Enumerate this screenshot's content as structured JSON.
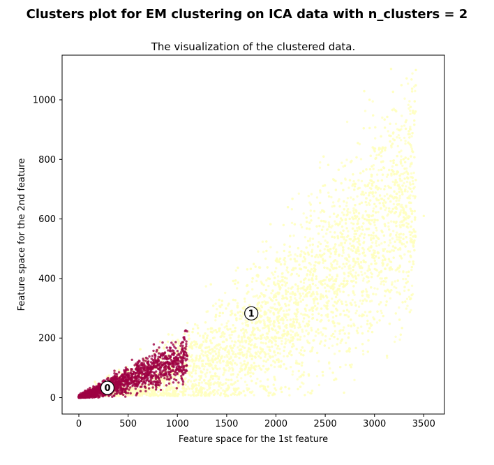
{
  "figure": {
    "suptitle": "Clusters plot for EM clustering on ICA data with n_clusters = 2"
  },
  "chart_data": {
    "type": "scatter",
    "title": "The visualization of the clustered data.",
    "xlabel": "Feature space for the 1st feature",
    "ylabel": "Feature space for the 2nd feature",
    "xlim": [
      -170,
      3710
    ],
    "ylim": [
      -55,
      1150
    ],
    "xticks": [
      0,
      500,
      1000,
      1500,
      2000,
      2500,
      3000,
      3500
    ],
    "yticks": [
      0,
      200,
      400,
      600,
      800,
      1000
    ],
    "grid": false,
    "series": [
      {
        "cluster": "1",
        "color": "#ffffbf",
        "shape": "cone",
        "x_range": [
          200,
          3500
        ],
        "y_range": [
          20,
          1100
        ],
        "points": [
          [
            300,
            60
          ],
          [
            400,
            70
          ],
          [
            500,
            90
          ],
          [
            600,
            90
          ],
          [
            700,
            110
          ],
          [
            800,
            120
          ],
          [
            900,
            140
          ],
          [
            1000,
            150
          ],
          [
            1100,
            160
          ],
          [
            1200,
            180
          ],
          [
            1300,
            200
          ],
          [
            1400,
            220
          ],
          [
            1500,
            240
          ],
          [
            1600,
            260
          ],
          [
            1700,
            280
          ],
          [
            1800,
            300
          ],
          [
            1900,
            320
          ],
          [
            2000,
            340
          ],
          [
            2100,
            360
          ],
          [
            2200,
            380
          ],
          [
            2300,
            400
          ],
          [
            2400,
            430
          ],
          [
            2500,
            460
          ],
          [
            2600,
            490
          ],
          [
            2700,
            520
          ],
          [
            2800,
            560
          ],
          [
            2900,
            600
          ],
          [
            3000,
            650
          ],
          [
            3100,
            700
          ],
          [
            3200,
            750
          ],
          [
            3300,
            620
          ],
          [
            3400,
            520
          ],
          [
            3500,
            610
          ],
          [
            2950,
            1000
          ],
          [
            3150,
            880
          ],
          [
            3420,
            1100
          ]
        ]
      },
      {
        "cluster": "0",
        "color": "#9e0142",
        "shape": "cone",
        "x_range": [
          0,
          1100
        ],
        "y_range": [
          0,
          150
        ],
        "points": [
          [
            0,
            0
          ],
          [
            50,
            5
          ],
          [
            100,
            10
          ],
          [
            150,
            15
          ],
          [
            200,
            20
          ],
          [
            250,
            30
          ],
          [
            300,
            35
          ],
          [
            350,
            40
          ],
          [
            400,
            50
          ],
          [
            450,
            60
          ],
          [
            500,
            70
          ],
          [
            550,
            80
          ],
          [
            600,
            90
          ],
          [
            700,
            100
          ],
          [
            800,
            110
          ],
          [
            900,
            120
          ],
          [
            1000,
            130
          ],
          [
            1100,
            140
          ]
        ]
      }
    ],
    "centers": [
      {
        "label": "0",
        "x": 290,
        "y": 33
      },
      {
        "label": "1",
        "x": 1750,
        "y": 283
      }
    ]
  }
}
